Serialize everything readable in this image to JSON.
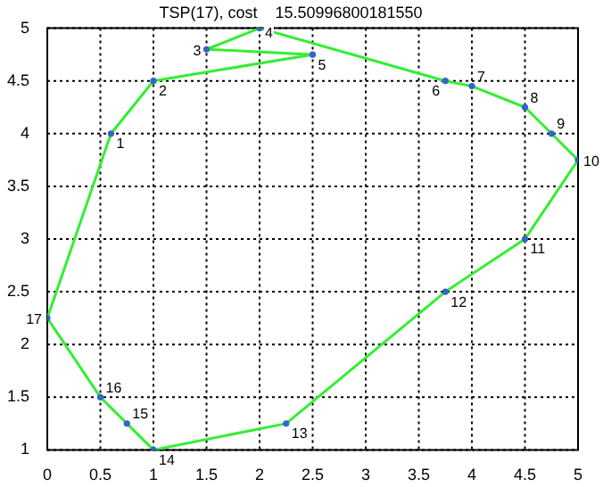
{
  "chart_data": {
    "type": "line",
    "title": "TSP(17), cost    15.50996800181550",
    "series": [
      {
        "type": "line",
        "color": "#33ee33",
        "marker": "none",
        "line_style": "solid",
        "x": [
          0.6,
          1,
          2.5,
          1.5,
          2,
          3.75,
          4,
          4.5,
          4.75,
          5,
          4.5,
          3.75,
          2.25,
          1,
          0.75,
          0.5,
          0
        ],
        "values": [
          4,
          4.5,
          4.75,
          4.8,
          5,
          4.5,
          4.45,
          4.25,
          4,
          3.75,
          3,
          2.5,
          1.25,
          1,
          1.25,
          1.5,
          2.25
        ]
      },
      {
        "type": "line",
        "color": "#33ee33",
        "marker": "none",
        "line_style": "solid",
        "x": [
          0,
          0.6
        ],
        "values": [
          2.25,
          4
        ]
      },
      {
        "type": "scatter",
        "color": "#3366cc",
        "marker": "circle",
        "x": [
          0.6,
          1,
          1.5,
          2,
          2.5,
          3.75,
          4,
          4.5,
          4.75,
          5,
          4.5,
          3.75,
          2.25,
          1,
          0.75,
          0.5,
          0
        ],
        "values": [
          4,
          4.5,
          4.8,
          5,
          4.75,
          4.5,
          4.45,
          4.25,
          4,
          3.75,
          3,
          2.5,
          1.25,
          1,
          1.25,
          1.5,
          2.25
        ]
      }
    ],
    "xlim": [
      0,
      5
    ],
    "xticks": [
      0,
      0.5,
      1,
      1.5,
      2,
      2.5,
      3,
      3.5,
      4,
      4.5,
      5
    ],
    "ylim": [
      1,
      5
    ],
    "yticks": [
      1,
      1.5,
      2,
      2.5,
      3,
      3.5,
      4,
      4.5,
      5
    ],
    "grid": true,
    "legend": false,
    "annotations": [
      {
        "text": "1",
        "x": 0.6,
        "y": 4
      },
      {
        "text": "2",
        "x": 1,
        "y": 4.5
      },
      {
        "text": "3",
        "x": 1.5,
        "y": 4.8
      },
      {
        "text": "4",
        "x": 2,
        "y": 5
      },
      {
        "text": "5",
        "x": 2.5,
        "y": 4.75
      },
      {
        "text": "6",
        "x": 3.75,
        "y": 4.5
      },
      {
        "text": "7",
        "x": 4,
        "y": 4.45
      },
      {
        "text": "8",
        "x": 4.5,
        "y": 4.25
      },
      {
        "text": "9",
        "x": 4.75,
        "y": 4
      },
      {
        "text": "10",
        "x": 5,
        "y": 3.75
      },
      {
        "text": "11",
        "x": 4.5,
        "y": 3
      },
      {
        "text": "12",
        "x": 3.75,
        "y": 2.5
      },
      {
        "text": "13",
        "x": 2.25,
        "y": 1.25
      },
      {
        "text": "14",
        "x": 1,
        "y": 1
      },
      {
        "text": "15",
        "x": 0.75,
        "y": 1.25
      },
      {
        "text": "16",
        "x": 0.5,
        "y": 1.5
      },
      {
        "text": "17",
        "x": 0,
        "y": 2.25
      }
    ]
  }
}
